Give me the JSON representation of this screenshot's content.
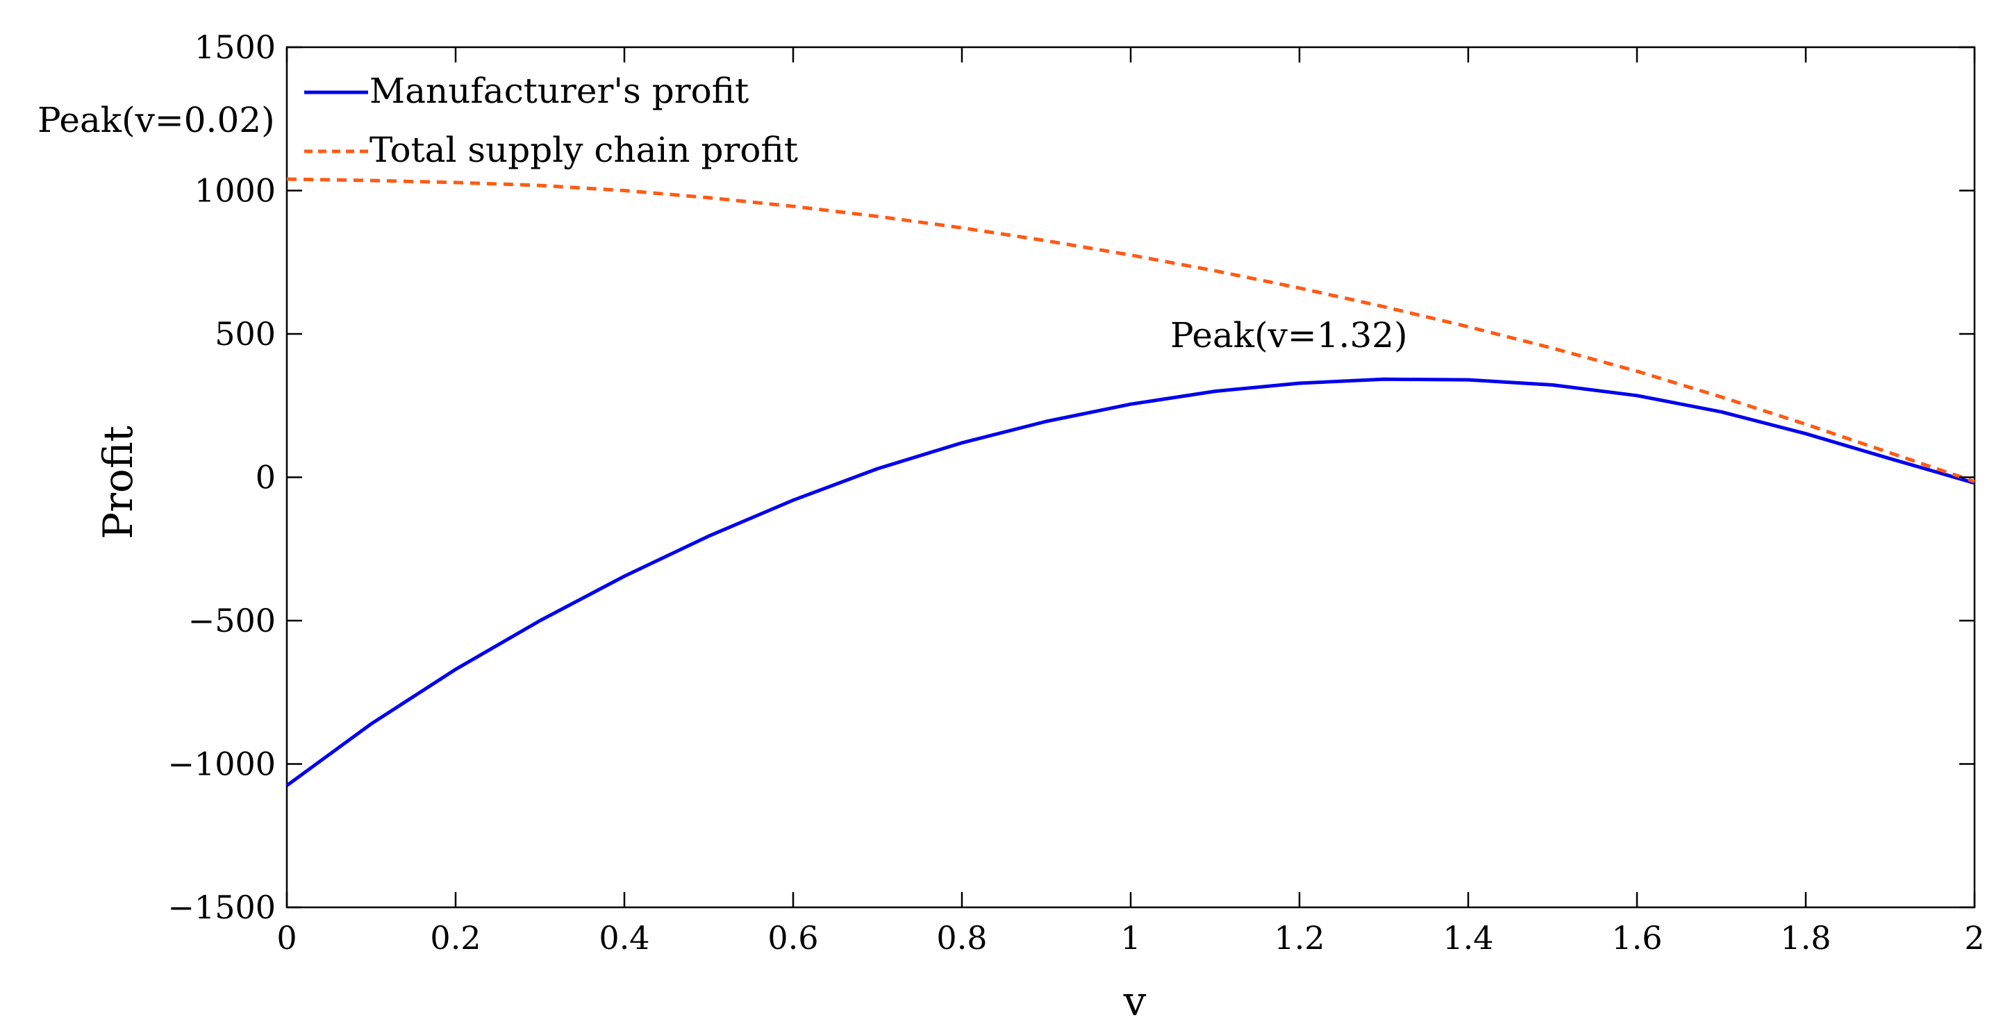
{
  "chart_data": {
    "type": "line",
    "xlabel": "v",
    "ylabel": "Profit",
    "xlim": [
      0,
      2
    ],
    "ylim": [
      -1500,
      1500
    ],
    "x_ticks": [
      0,
      0.2,
      0.4,
      0.6,
      0.8,
      1,
      1.2,
      1.4,
      1.6,
      1.8,
      2
    ],
    "x_tick_labels": [
      "0",
      "0.2",
      "0.4",
      "0.6",
      "0.8",
      "1",
      "1.2",
      "1.4",
      "1.6",
      "1.8",
      "2"
    ],
    "y_ticks": [
      -1500,
      -1000,
      -500,
      0,
      500,
      1000,
      1500
    ],
    "y_tick_labels": [
      "−1500",
      "−1000",
      "−500",
      "0",
      "500",
      "1000",
      "1500"
    ],
    "grid": false,
    "legend_position": "top-left",
    "x": [
      0,
      0.1,
      0.2,
      0.3,
      0.4,
      0.5,
      0.6,
      0.7,
      0.8,
      0.9,
      1.0,
      1.1,
      1.2,
      1.3,
      1.4,
      1.5,
      1.6,
      1.7,
      1.8,
      1.9,
      2.0
    ],
    "series": [
      {
        "name": "Manufacturer's profit",
        "color": "#0000ee",
        "style": "solid",
        "values": [
          -1075,
          -860,
          -670,
          -500,
          -345,
          -205,
          -80,
          30,
          120,
          195,
          255,
          300,
          328,
          342,
          340,
          322,
          285,
          228,
          152,
          65,
          -20
        ]
      },
      {
        "name": "Total supply chain profit",
        "color": "#ff5a14",
        "style": "dashed",
        "values": [
          1040,
          1035,
          1028,
          1018,
          1000,
          975,
          945,
          910,
          870,
          825,
          775,
          720,
          660,
          595,
          525,
          450,
          370,
          280,
          185,
          85,
          -15
        ]
      }
    ],
    "annotations": [
      {
        "text": "Peak(v=0.02)",
        "x": 0.02,
        "y": 1040
      },
      {
        "text": "Peak(v=1.32)",
        "x": 1.32,
        "y": 342
      }
    ]
  }
}
